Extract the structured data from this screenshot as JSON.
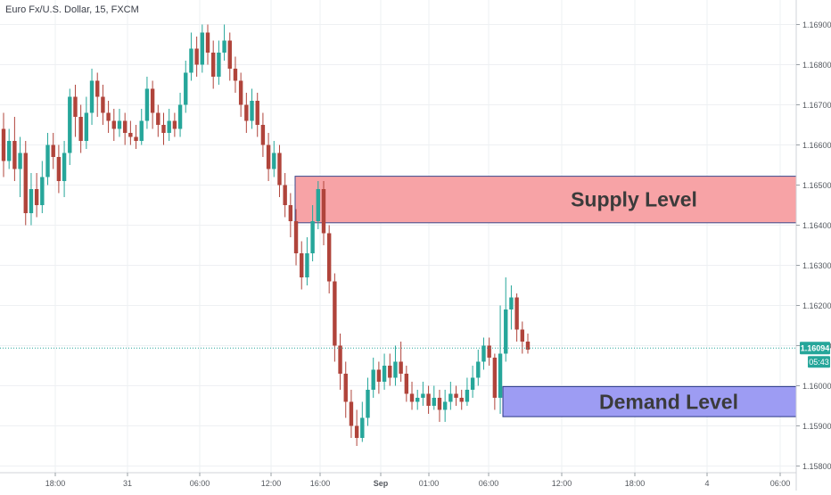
{
  "header": {
    "title": "Euro Fx/U.S. Dollar, 15, FXCM"
  },
  "colors": {
    "up": "#26a69a",
    "down": "#b0443b",
    "supply_fill": "#f7a3a6",
    "supply_border": "#3b4a8c",
    "demand_fill": "#9d9cf3",
    "demand_border": "#2c3a87",
    "price_line": "#26a69a",
    "grid": "#eef0f3",
    "axis_text": "#55595f"
  },
  "price_label": {
    "value": "1.16094",
    "countdown": "05:43"
  },
  "chart_data": {
    "type": "candlestick",
    "ylim": [
      1.1584,
      1.1697
    ],
    "y_ticks": [
      "1.16900",
      "1.16800",
      "1.16700",
      "1.16600",
      "1.16500",
      "1.16400",
      "1.16300",
      "1.16200",
      "1.16100",
      "1.16000",
      "1.15900",
      "1.15800"
    ],
    "x_ticks": [
      "18:00",
      "31",
      "06:00",
      "12:00",
      "16:00",
      "Sep",
      "01:00",
      "06:00",
      "12:00",
      "18:00",
      "4",
      "06:00"
    ],
    "last_price": 1.16094,
    "zones": [
      {
        "label": "Supply Level",
        "from": 1.16406,
        "to": 1.16522
      },
      {
        "label": "Demand Level",
        "from": 1.15923,
        "to": 1.15998
      }
    ],
    "candles": [
      [
        1.1664,
        1.1656,
        1.1668,
        1.1652
      ],
      [
        1.1656,
        1.1661,
        1.1664,
        1.1654
      ],
      [
        1.1661,
        1.1654,
        1.1667,
        1.1651
      ],
      [
        1.1654,
        1.1658,
        1.1662,
        1.1647
      ],
      [
        1.1658,
        1.1643,
        1.1661,
        1.164
      ],
      [
        1.1643,
        1.1649,
        1.1653,
        1.164
      ],
      [
        1.1649,
        1.1645,
        1.1653,
        1.1642
      ],
      [
        1.1645,
        1.1652,
        1.1656,
        1.1643
      ],
      [
        1.1652,
        1.166,
        1.1663,
        1.165
      ],
      [
        1.166,
        1.1657,
        1.1663,
        1.1654
      ],
      [
        1.1657,
        1.1651,
        1.166,
        1.1648
      ],
      [
        1.1651,
        1.1658,
        1.1661,
        1.1647
      ],
      [
        1.1658,
        1.1672,
        1.1674,
        1.1655
      ],
      [
        1.1672,
        1.1667,
        1.1675,
        1.1662
      ],
      [
        1.1667,
        1.1661,
        1.167,
        1.1658
      ],
      [
        1.1661,
        1.1668,
        1.1672,
        1.1659
      ],
      [
        1.1668,
        1.1676,
        1.1679,
        1.1665
      ],
      [
        1.1676,
        1.1672,
        1.1678,
        1.1667
      ],
      [
        1.1672,
        1.1668,
        1.1675,
        1.1665
      ],
      [
        1.1668,
        1.1666,
        1.1671,
        1.1663
      ],
      [
        1.1666,
        1.1664,
        1.1669,
        1.1661
      ],
      [
        1.1664,
        1.1666,
        1.1669,
        1.1662
      ],
      [
        1.1666,
        1.1663,
        1.1668,
        1.166
      ],
      [
        1.1663,
        1.1662,
        1.1666,
        1.166
      ],
      [
        1.1662,
        1.1661,
        1.1665,
        1.1659
      ],
      [
        1.1661,
        1.1666,
        1.1669,
        1.166
      ],
      [
        1.1666,
        1.1674,
        1.1677,
        1.1664
      ],
      [
        1.1674,
        1.1668,
        1.1676,
        1.1664
      ],
      [
        1.1668,
        1.1665,
        1.167,
        1.1662
      ],
      [
        1.1665,
        1.1663,
        1.1668,
        1.166
      ],
      [
        1.1663,
        1.1666,
        1.1669,
        1.1661
      ],
      [
        1.1666,
        1.1664,
        1.1668,
        1.1662
      ],
      [
        1.1664,
        1.167,
        1.1673,
        1.1662
      ],
      [
        1.167,
        1.1678,
        1.1681,
        1.1668
      ],
      [
        1.1678,
        1.1684,
        1.1688,
        1.1676
      ],
      [
        1.1684,
        1.168,
        1.1687,
        1.1677
      ],
      [
        1.168,
        1.1688,
        1.169,
        1.1678
      ],
      [
        1.1688,
        1.1683,
        1.169,
        1.168
      ],
      [
        1.1683,
        1.1677,
        1.1686,
        1.1674
      ],
      [
        1.1677,
        1.1683,
        1.1686,
        1.1675
      ],
      [
        1.1683,
        1.1686,
        1.169,
        1.1681
      ],
      [
        1.1686,
        1.1679,
        1.1688,
        1.1676
      ],
      [
        1.1679,
        1.1676,
        1.1682,
        1.1673
      ],
      [
        1.1676,
        1.167,
        1.1678,
        1.1667
      ],
      [
        1.167,
        1.1666,
        1.1673,
        1.1663
      ],
      [
        1.1666,
        1.1671,
        1.1674,
        1.1664
      ],
      [
        1.1671,
        1.1665,
        1.1673,
        1.1662
      ],
      [
        1.1665,
        1.166,
        1.1668,
        1.1657
      ],
      [
        1.166,
        1.1654,
        1.1663,
        1.1651
      ],
      [
        1.1654,
        1.1658,
        1.1661,
        1.1652
      ],
      [
        1.1658,
        1.165,
        1.166,
        1.1647
      ],
      [
        1.165,
        1.1645,
        1.1653,
        1.1642
      ],
      [
        1.1645,
        1.1641,
        1.1648,
        1.1637
      ],
      [
        1.1641,
        1.1633,
        1.1644,
        1.163
      ],
      [
        1.1633,
        1.1627,
        1.1636,
        1.1624
      ],
      [
        1.1627,
        1.1633,
        1.1637,
        1.1625
      ],
      [
        1.1633,
        1.1641,
        1.1645,
        1.1631
      ],
      [
        1.1641,
        1.1649,
        1.1651,
        1.1639
      ],
      [
        1.1649,
        1.1638,
        1.1651,
        1.1635
      ],
      [
        1.1638,
        1.1626,
        1.164,
        1.1623
      ],
      [
        1.1626,
        1.161,
        1.1628,
        1.1606
      ],
      [
        1.161,
        1.1603,
        1.1613,
        1.1599
      ],
      [
        1.1603,
        1.1596,
        1.1606,
        1.1592
      ],
      [
        1.1596,
        1.159,
        1.1599,
        1.1587
      ],
      [
        1.159,
        1.1587,
        1.1594,
        1.1585
      ],
      [
        1.1587,
        1.1592,
        1.1596,
        1.1586
      ],
      [
        1.1592,
        1.1599,
        1.1602,
        1.159
      ],
      [
        1.1599,
        1.1604,
        1.1607,
        1.1597
      ],
      [
        1.1604,
        1.1601,
        1.1606,
        1.1598
      ],
      [
        1.1601,
        1.1605,
        1.1608,
        1.1599
      ],
      [
        1.1605,
        1.1602,
        1.1608,
        1.16
      ],
      [
        1.1602,
        1.1606,
        1.161,
        1.16
      ],
      [
        1.1606,
        1.1603,
        1.1611,
        1.1601
      ],
      [
        1.1603,
        1.1598,
        1.1605,
        1.1596
      ],
      [
        1.1598,
        1.1596,
        1.1601,
        1.1594
      ],
      [
        1.1596,
        1.1597,
        1.1599,
        1.1594
      ],
      [
        1.1597,
        1.1598,
        1.1601,
        1.1595
      ],
      [
        1.1598,
        1.1595,
        1.16,
        1.1593
      ],
      [
        1.1595,
        1.1597,
        1.16,
        1.1594
      ],
      [
        1.1597,
        1.1594,
        1.1599,
        1.1591
      ],
      [
        1.1594,
        1.1596,
        1.1599,
        1.1591
      ],
      [
        1.1596,
        1.1598,
        1.1601,
        1.1594
      ],
      [
        1.1598,
        1.1597,
        1.16,
        1.1595
      ],
      [
        1.1597,
        1.1596,
        1.1599,
        1.1594
      ],
      [
        1.1596,
        1.1599,
        1.1602,
        1.1595
      ],
      [
        1.1599,
        1.1602,
        1.1605,
        1.1597
      ],
      [
        1.1602,
        1.1606,
        1.1609,
        1.16
      ],
      [
        1.1606,
        1.161,
        1.1612,
        1.1604
      ],
      [
        1.161,
        1.1607,
        1.1612,
        1.1605
      ],
      [
        1.1607,
        1.1597,
        1.1608,
        1.1594
      ],
      [
        1.1597,
        1.1608,
        1.162,
        1.1593
      ],
      [
        1.1608,
        1.1619,
        1.1627,
        1.1606
      ],
      [
        1.1619,
        1.1622,
        1.1625,
        1.1614
      ],
      [
        1.1622,
        1.1614,
        1.1623,
        1.1611
      ],
      [
        1.1614,
        1.1611,
        1.1616,
        1.1608
      ],
      [
        1.1611,
        1.1609,
        1.1613,
        1.1608
      ]
    ]
  }
}
